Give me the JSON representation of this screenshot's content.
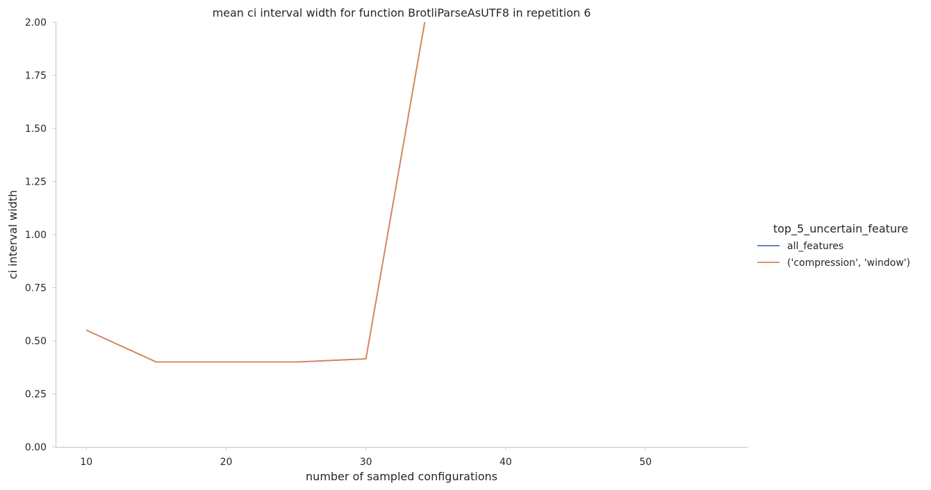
{
  "chart_data": {
    "type": "line",
    "title": "mean ci interval width for function BrotliParseAsUTF8 in repetition 6",
    "xlabel": "number of sampled configurations",
    "ylabel": "ci interval width",
    "xlim": [
      7.8,
      57.3
    ],
    "ylim": [
      0,
      2.0
    ],
    "xticks": [
      10,
      20,
      30,
      40,
      50
    ],
    "yticks": [
      0.0,
      0.25,
      0.5,
      0.75,
      1.0,
      1.25,
      1.5,
      1.75,
      2.0
    ],
    "xtick_labels": [
      "10",
      "20",
      "30",
      "40",
      "50"
    ],
    "ytick_labels": [
      "0.00",
      "0.25",
      "0.50",
      "0.75",
      "1.00",
      "1.25",
      "1.50",
      "1.75",
      "2.00"
    ],
    "grid": false,
    "legend": {
      "title": "top_5_uncertain_feature",
      "placement": "right"
    },
    "series": [
      {
        "name": "all_features",
        "color": "#4c72b0",
        "x": [
          10,
          15,
          20,
          25,
          30,
          35
        ],
        "y": [
          0.55,
          0.4,
          0.4,
          0.4,
          0.415,
          2.3
        ]
      },
      {
        "name": "('compression', 'window')",
        "color": "#dd8452",
        "x": [
          10,
          15,
          20,
          25,
          30,
          35
        ],
        "y": [
          0.55,
          0.4,
          0.4,
          0.4,
          0.415,
          2.3
        ]
      }
    ]
  }
}
